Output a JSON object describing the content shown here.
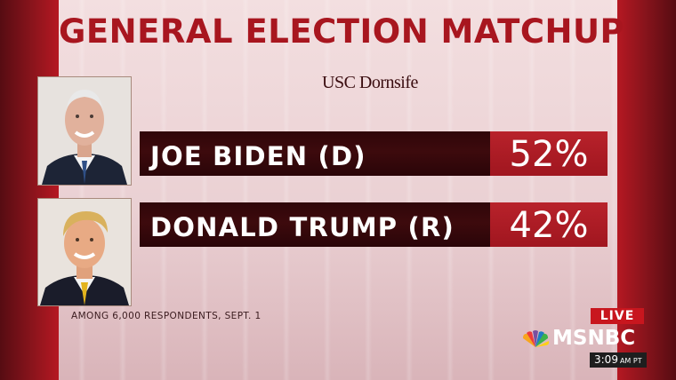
{
  "graphic": {
    "title": "GENERAL ELECTION MATCHUP",
    "source": "USC Dornsife",
    "footnote": "AMONG 6,000 RESPONDENTS, SEPT. 1"
  },
  "candidates": [
    {
      "name": "JOE BIDEN (D)",
      "percent": "52%",
      "photo_icon": "candidate-portrait-biden"
    },
    {
      "name": "DONALD TRUMP (R)",
      "percent": "42%",
      "photo_icon": "candidate-portrait-trump"
    }
  ],
  "broadcast": {
    "live_label": "LIVE",
    "network": "MSNBC",
    "network_icon": "peacock-icon",
    "time": "3:09",
    "time_suffix": "AM PT"
  },
  "colors": {
    "title": "#a8161f",
    "bar_dark": "#3d0a0d",
    "percent_box": "#a0161f",
    "live_badge": "#c8161e"
  }
}
